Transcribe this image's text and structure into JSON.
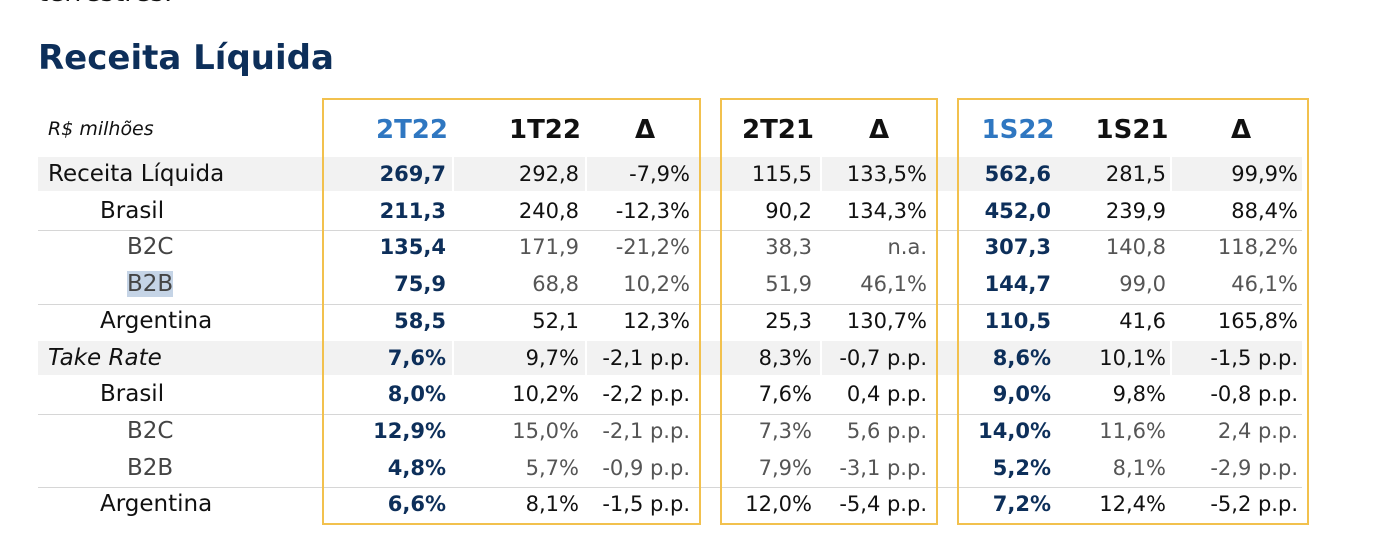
{
  "header_fragment": "terrestres.",
  "title": "Receita Líquida",
  "units_label": "R$ milhões",
  "headers": [
    "2T22",
    "1T22",
    "Δ",
    "2T21",
    "Δ",
    "1S22",
    "1S21",
    "Δ"
  ],
  "rows": [
    {
      "label": "Receita Líquida",
      "values": [
        "269,7",
        "292,8",
        "-7,9%",
        "115,5",
        "133,5%",
        "562,6",
        "281,5",
        "99,9%"
      ]
    },
    {
      "label": "Brasil",
      "values": [
        "211,3",
        "240,8",
        "-12,3%",
        "90,2",
        "134,3%",
        "452,0",
        "239,9",
        "88,4%"
      ]
    },
    {
      "label": "B2C",
      "values": [
        "135,4",
        "171,9",
        "-21,2%",
        "38,3",
        "n.a.",
        "307,3",
        "140,8",
        "118,2%"
      ]
    },
    {
      "label": "B2B",
      "values": [
        "75,9",
        "68,8",
        "10,2%",
        "51,9",
        "46,1%",
        "144,7",
        "99,0",
        "46,1%"
      ]
    },
    {
      "label": "Argentina",
      "values": [
        "58,5",
        "52,1",
        "12,3%",
        "25,3",
        "130,7%",
        "110,5",
        "41,6",
        "165,8%"
      ]
    },
    {
      "label": "Take Rate",
      "values": [
        "7,6%",
        "9,7%",
        "-2,1 p.p.",
        "8,3%",
        "-0,7 p.p.",
        "8,6%",
        "10,1%",
        "-1,5 p.p."
      ]
    },
    {
      "label": "Brasil",
      "values": [
        "8,0%",
        "10,2%",
        "-2,2 p.p.",
        "7,6%",
        "0,4 p.p.",
        "9,0%",
        "9,8%",
        "-0,8 p.p."
      ]
    },
    {
      "label": "B2C",
      "values": [
        "12,9%",
        "15,0%",
        "-2,1 p.p.",
        "7,3%",
        "5,6 p.p.",
        "14,0%",
        "11,6%",
        "2,4 p.p."
      ]
    },
    {
      "label": "B2B",
      "values": [
        "4,8%",
        "5,7%",
        "-0,9 p.p.",
        "7,9%",
        "-3,1 p.p.",
        "5,2%",
        "8,1%",
        "-2,9 p.p."
      ]
    },
    {
      "label": "Argentina",
      "values": [
        "6,6%",
        "8,1%",
        "-1,5 p.p.",
        "12,0%",
        "-5,4 p.p.",
        "7,2%",
        "12,4%",
        "-5,2 p.p."
      ]
    }
  ],
  "colors": {
    "title": "#0d2f5a",
    "current_period": "#0d2f5a",
    "current_header": "#2f77c1",
    "box_border": "#f2c14e",
    "band": "#f2f2f2",
    "selection": "#c5d4e6"
  }
}
